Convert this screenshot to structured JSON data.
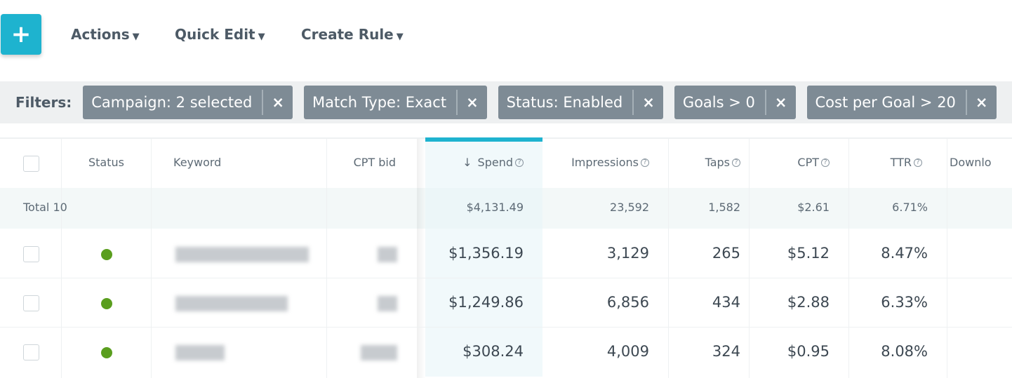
{
  "toolbar": {
    "add_label": "+",
    "actions": "Actions",
    "quick_edit": "Quick Edit",
    "create_rule": "Create Rule",
    "chevron": "chevron-down-icon"
  },
  "filters": {
    "label": "Filters:",
    "chips": [
      "Campaign: 2 selected",
      "Match Type: Exact",
      "Status: Enabled",
      "Goals > 0",
      "Cost per Goal > 20"
    ],
    "remove": "×"
  },
  "table": {
    "headers": {
      "status": "Status",
      "keyword": "Keyword",
      "cpt_bid": "CPT bid",
      "spend": "Spend",
      "spend_sort": "↓",
      "impressions": "Impressions",
      "taps": "Taps",
      "cpt": "CPT",
      "ttr": "TTR",
      "downloads": "Downlo"
    },
    "help": "?",
    "total": {
      "label": "Total 10",
      "spend": "$4,131.49",
      "impressions": "23,592",
      "taps": "1,582",
      "cpt": "$2.61",
      "ttr": "6.71%"
    },
    "rows": [
      {
        "status": "enabled",
        "spend": "$1,356.19",
        "impressions": "3,129",
        "taps": "265",
        "cpt": "$5.12",
        "ttr": "8.47%"
      },
      {
        "status": "enabled",
        "spend": "$1,249.86",
        "impressions": "6,856",
        "taps": "434",
        "cpt": "$2.88",
        "ttr": "6.33%"
      },
      {
        "status": "enabled",
        "spend": "$308.24",
        "impressions": "4,009",
        "taps": "324",
        "cpt": "$0.95",
        "ttr": "8.08%"
      }
    ],
    "colors": {
      "accent": "#1eb3cf",
      "status_enabled": "#5a9e1e",
      "chip": "#7e8b95"
    }
  }
}
